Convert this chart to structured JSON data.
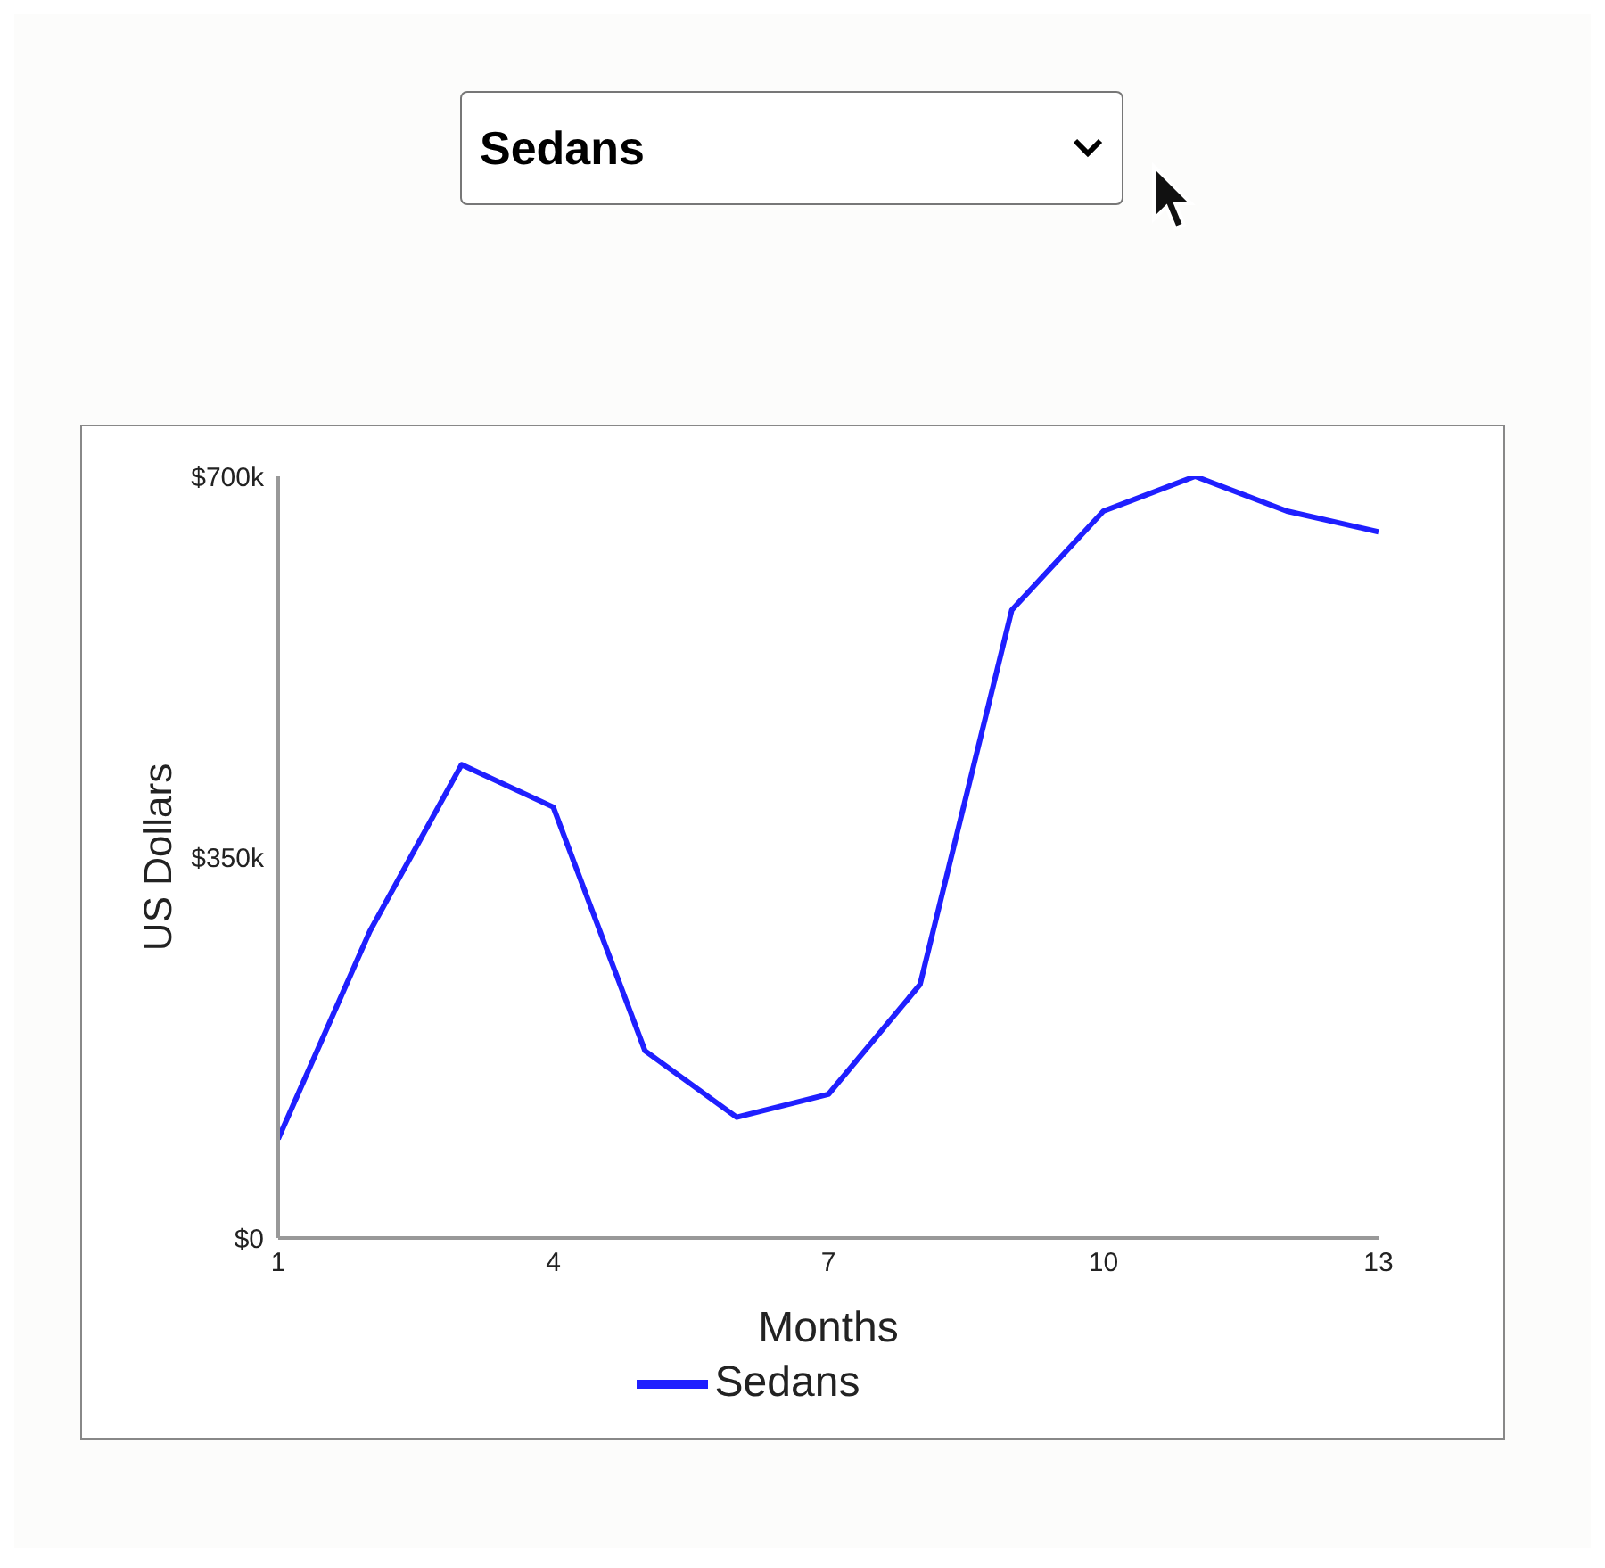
{
  "chart_data": {
    "type": "line",
    "xlabel": "Months",
    "ylabel": "US Dollars",
    "annotations": [
      "Sedans"
    ],
    "x": [
      1,
      2,
      3,
      4,
      5,
      6,
      7,
      8,
      9,
      10,
      11,
      12,
      13
    ],
    "series": [
      {
        "name": "Sedans",
        "color": "#1f1fff",
        "values": [
          91,
          282,
          435,
          396,
          172,
          111,
          132,
          233,
          577,
          668,
          700,
          668,
          649
        ]
      }
    ],
    "xlim": [
      1,
      13
    ],
    "xticks": [
      1,
      4,
      7,
      10,
      13
    ],
    "ylim": [
      0,
      700
    ],
    "yticks": [
      {
        "value": 0,
        "label": "$0"
      },
      {
        "value": 350,
        "label": "$350k"
      },
      {
        "value": 700,
        "label": "$700k"
      }
    ],
    "grid": false,
    "legend": "bottom",
    "marker": "none",
    "line_style": "solid"
  }
}
